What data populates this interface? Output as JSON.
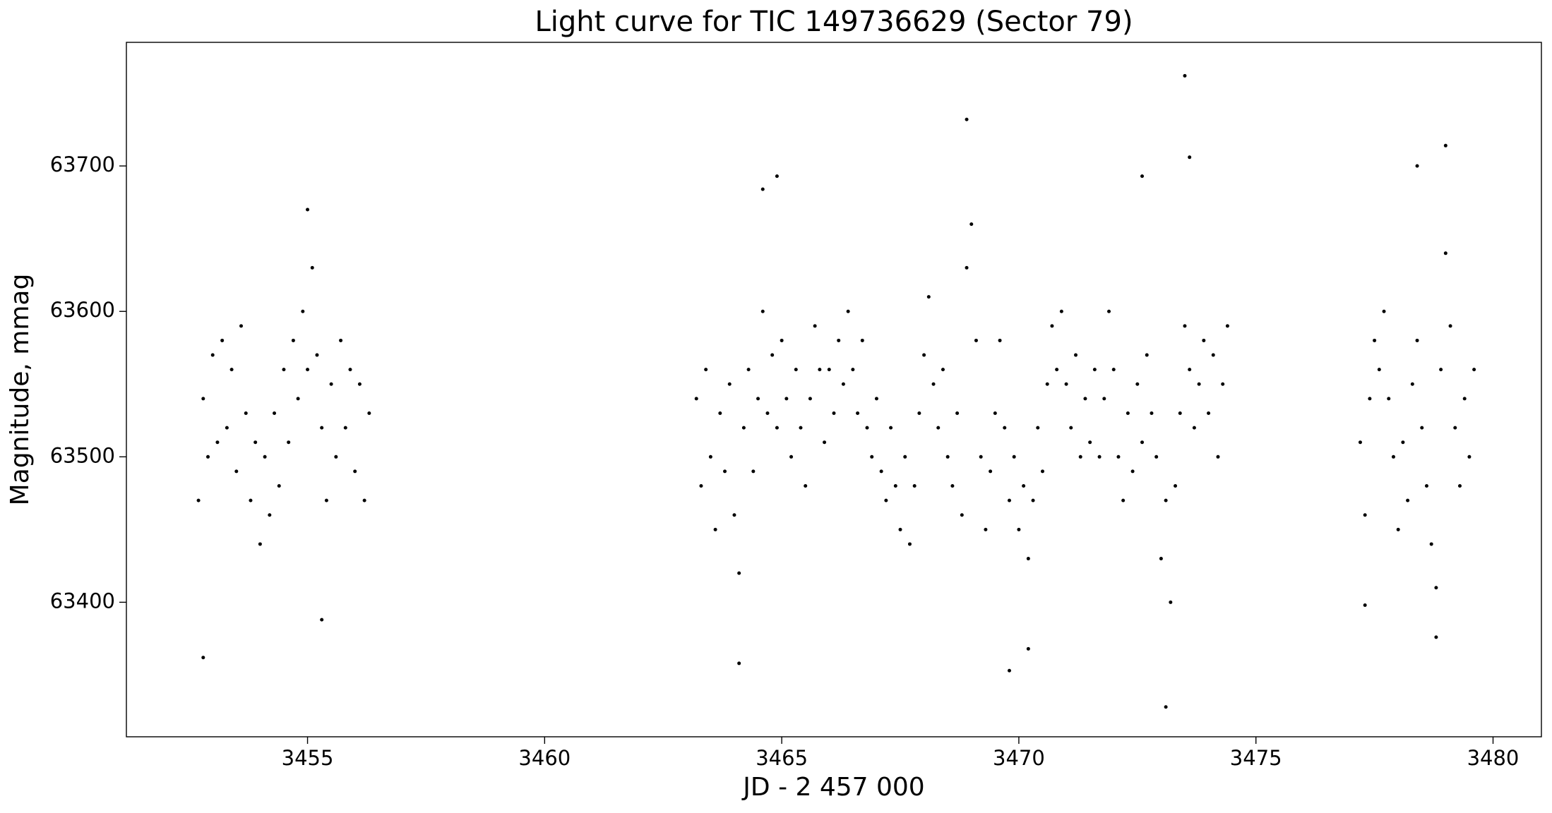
{
  "chart_data": {
    "type": "scatter",
    "title": "Light curve for TIC 149736629 (Sector 79)",
    "xlabel": "JD - 2 457 000",
    "ylabel": "Magnitude, mmag",
    "color": "#000000",
    "xlim": [
      3451.18,
      3481.02
    ],
    "ylim": [
      63307.5,
      63785
    ],
    "xticks": [
      3455,
      3460,
      3465,
      3470,
      3475,
      3480
    ],
    "yticks": [
      63400,
      63500,
      63600,
      63700
    ],
    "x": [
      3452.7,
      3452.8,
      3452.9,
      3453.0,
      3453.1,
      3453.2,
      3453.3,
      3453.4,
      3453.5,
      3453.6,
      3453.7,
      3453.8,
      3453.9,
      3454.0,
      3454.1,
      3454.2,
      3454.3,
      3454.4,
      3454.5,
      3454.6,
      3454.7,
      3454.8,
      3454.9,
      3455.0,
      3455.1,
      3455.2,
      3455.3,
      3455.4,
      3455.5,
      3455.6,
      3455.7,
      3455.8,
      3455.9,
      3456.0,
      3456.1,
      3456.2,
      3456.3,
      3452.8,
      3455.3,
      3455.0,
      3463.2,
      3463.3,
      3463.4,
      3463.5,
      3463.6,
      3463.7,
      3463.8,
      3463.9,
      3464.0,
      3464.1,
      3464.2,
      3464.3,
      3464.4,
      3464.5,
      3464.6,
      3464.7,
      3464.8,
      3464.9,
      3465.0,
      3465.1,
      3465.2,
      3465.3,
      3465.4,
      3465.5,
      3465.6,
      3465.7,
      3465.8,
      3465.9,
      3466.0,
      3466.1,
      3466.2,
      3466.3,
      3466.4,
      3466.5,
      3466.6,
      3466.7,
      3466.8,
      3466.9,
      3467.0,
      3467.1,
      3467.2,
      3467.3,
      3467.4,
      3467.5,
      3467.6,
      3467.7,
      3467.8,
      3467.9,
      3468.0,
      3468.1,
      3468.2,
      3468.3,
      3468.4,
      3468.5,
      3468.6,
      3468.7,
      3468.8,
      3468.9,
      3469.0,
      3469.1,
      3469.2,
      3469.3,
      3469.4,
      3469.5,
      3469.6,
      3469.7,
      3469.8,
      3469.9,
      3470.0,
      3470.1,
      3470.2,
      3470.3,
      3470.4,
      3470.5,
      3470.6,
      3470.7,
      3470.8,
      3470.9,
      3471.0,
      3471.1,
      3471.2,
      3471.3,
      3471.4,
      3471.5,
      3471.6,
      3471.7,
      3471.8,
      3471.9,
      3472.0,
      3472.1,
      3472.2,
      3472.3,
      3472.4,
      3472.5,
      3472.6,
      3472.7,
      3472.8,
      3472.9,
      3473.0,
      3473.1,
      3473.2,
      3473.3,
      3473.4,
      3473.5,
      3473.6,
      3473.7,
      3473.8,
      3473.9,
      3474.0,
      3474.1,
      3474.2,
      3474.3,
      3474.4,
      3464.1,
      3468.9,
      3469.8,
      3470.2,
      3473.1,
      3473.5,
      3473.6,
      3472.6,
      3464.9,
      3464.6,
      3477.2,
      3477.3,
      3477.4,
      3477.5,
      3477.6,
      3477.7,
      3477.8,
      3477.9,
      3478.0,
      3478.1,
      3478.2,
      3478.3,
      3478.4,
      3478.5,
      3478.6,
      3478.7,
      3478.8,
      3478.9,
      3479.0,
      3479.1,
      3479.2,
      3479.3,
      3479.4,
      3479.5,
      3479.6,
      3477.3,
      3478.4,
      3479.0,
      3478.8
    ],
    "values": [
      63470,
      63540,
      63500,
      63570,
      63510,
      63580,
      63520,
      63560,
      63490,
      63590,
      63530,
      63470,
      63510,
      63440,
      63500,
      63460,
      63530,
      63480,
      63560,
      63510,
      63580,
      63540,
      63600,
      63560,
      63630,
      63570,
      63520,
      63470,
      63550,
      63500,
      63580,
      63520,
      63560,
      63490,
      63550,
      63470,
      63530,
      63362,
      63388,
      63670,
      63540,
      63480,
      63560,
      63500,
      63450,
      63530,
      63490,
      63550,
      63460,
      63420,
      63520,
      63560,
      63490,
      63540,
      63600,
      63530,
      63570,
      63520,
      63580,
      63540,
      63500,
      63560,
      63520,
      63480,
      63540,
      63590,
      63560,
      63510,
      63560,
      63530,
      63580,
      63550,
      63600,
      63560,
      63530,
      63580,
      63520,
      63500,
      63540,
      63490,
      63470,
      63520,
      63480,
      63450,
      63500,
      63440,
      63480,
      63530,
      63570,
      63610,
      63550,
      63520,
      63560,
      63500,
      63480,
      63530,
      63460,
      63630,
      63660,
      63580,
      63500,
      63450,
      63490,
      63530,
      63580,
      63520,
      63470,
      63500,
      63450,
      63480,
      63430,
      63470,
      63520,
      63490,
      63550,
      63590,
      63560,
      63600,
      63550,
      63520,
      63570,
      63500,
      63540,
      63510,
      63560,
      63500,
      63540,
      63600,
      63560,
      63500,
      63470,
      63530,
      63490,
      63550,
      63510,
      63570,
      63530,
      63500,
      63430,
      63470,
      63400,
      63480,
      63530,
      63590,
      63560,
      63520,
      63550,
      63580,
      63530,
      63570,
      63500,
      63550,
      63590,
      63358,
      63732,
      63353,
      63368,
      63328,
      63762,
      63706,
      63693,
      63693,
      63684,
      63510,
      63460,
      63540,
      63580,
      63560,
      63600,
      63540,
      63500,
      63450,
      63510,
      63470,
      63550,
      63580,
      63520,
      63480,
      63440,
      63410,
      63560,
      63640,
      63590,
      63520,
      63480,
      63540,
      63500,
      63560,
      63398,
      63700,
      63714,
      63376
    ]
  }
}
